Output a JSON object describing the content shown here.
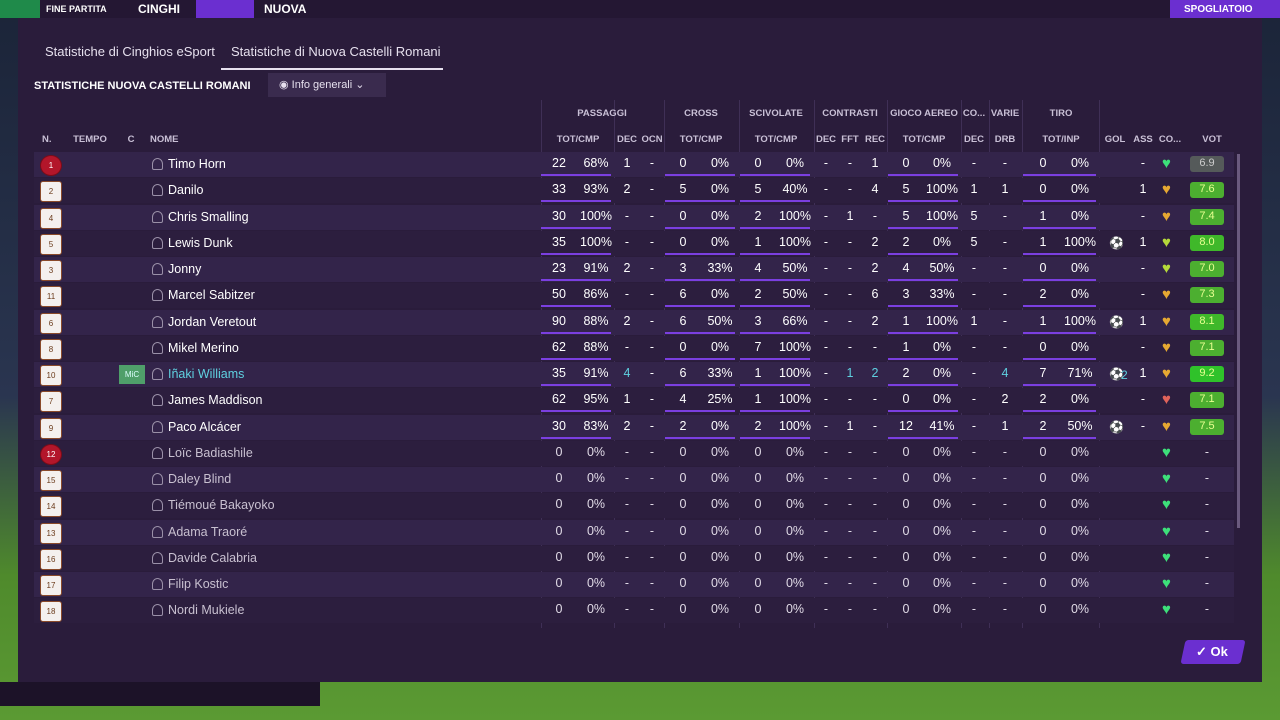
{
  "header": {
    "left": "FINE PARTITA",
    "home": "CINGHI",
    "away": "NUOVA",
    "button": "SPOGLIATOIO"
  },
  "tabs": [
    "Statistiche di Cinghios eSport",
    "Statistiche di Nuova Castelli Romani"
  ],
  "active_tab": 1,
  "section_title": "STATISTICHE NUOVA CASTELLI ROMANI",
  "dropdown": "Info generali",
  "table": {
    "groups": [
      "PASSAGGI",
      "CROSS",
      "SCIVOLATE",
      "CONTRASTI",
      "GIOCO AEREO",
      "CO...",
      "VARIE",
      "TIRO"
    ],
    "columns": [
      "N.",
      "TEMPO",
      "C",
      "NOME",
      "TOT/CMP",
      "DEC",
      "OCN",
      "TOT/CMP",
      "TOT/CMP",
      "DEC",
      "FFT",
      "REC",
      "TOT/CMP",
      "DEC",
      "DRB",
      "TOT/INP",
      "GOL",
      "ASS",
      "CO...",
      "VOT"
    ],
    "rows": [
      {
        "shirt": "1",
        "kit": "gk",
        "status": "starter",
        "name": "Timo Horn",
        "morale": "#3de07a",
        "vot_color": "#555a5a",
        "cells": [
          "22",
          "68%",
          "1",
          "-",
          "0",
          "0%",
          "0",
          "0%",
          "-",
          "-",
          "1",
          "0",
          "0%",
          "-",
          "-",
          "0",
          "0%",
          null,
          "-",
          "6.9"
        ]
      },
      {
        "shirt": "2",
        "kit": "outfield",
        "status": "starter",
        "name": "Danilo",
        "morale": "#e6a832",
        "vot_color": "#4caf30",
        "cells": [
          "33",
          "93%",
          "2",
          "-",
          "5",
          "0%",
          "5",
          "40%",
          "-",
          "-",
          "4",
          "5",
          "100%",
          "1",
          "1",
          "0",
          "0%",
          null,
          "1",
          "7.6"
        ]
      },
      {
        "shirt": "4",
        "kit": "outfield",
        "status": "starter",
        "name": "Chris Smalling",
        "morale": "#e6a832",
        "vot_color": "#4caf30",
        "cells": [
          "30",
          "100%",
          "-",
          "-",
          "0",
          "0%",
          "2",
          "100%",
          "-",
          "1",
          "-",
          "5",
          "100%",
          "5",
          "-",
          "1",
          "0%",
          null,
          "-",
          "7.4"
        ]
      },
      {
        "shirt": "5",
        "kit": "outfield",
        "status": "starter",
        "name": "Lewis Dunk",
        "morale": "#b5d93a",
        "vot_color": "#3fb82a",
        "cells": [
          "35",
          "100%",
          "-",
          "-",
          "0",
          "0%",
          "1",
          "100%",
          "-",
          "-",
          "2",
          "2",
          "0%",
          "5",
          "-",
          "1",
          "100%",
          1,
          "1",
          "8.0"
        ]
      },
      {
        "shirt": "3",
        "kit": "outfield",
        "status": "starter",
        "name": "Jonny",
        "morale": "#b5d93a",
        "vot_color": "#4caf30",
        "cells": [
          "23",
          "91%",
          "2",
          "-",
          "3",
          "33%",
          "4",
          "50%",
          "-",
          "-",
          "2",
          "4",
          "50%",
          "-",
          "-",
          "0",
          "0%",
          null,
          "-",
          "7.0"
        ]
      },
      {
        "shirt": "11",
        "kit": "outfield",
        "status": "starter",
        "name": "Marcel Sabitzer",
        "morale": "#e6a832",
        "vot_color": "#4caf30",
        "cells": [
          "50",
          "86%",
          "-",
          "-",
          "6",
          "0%",
          "2",
          "50%",
          "-",
          "-",
          "6",
          "3",
          "33%",
          "-",
          "-",
          "2",
          "0%",
          null,
          "-",
          "7.3"
        ]
      },
      {
        "shirt": "6",
        "kit": "outfield",
        "status": "starter",
        "name": "Jordan Veretout",
        "morale": "#e6a832",
        "vot_color": "#3fb82a",
        "cells": [
          "90",
          "88%",
          "2",
          "-",
          "6",
          "50%",
          "3",
          "66%",
          "-",
          "-",
          "2",
          "1",
          "100%",
          "1",
          "-",
          "1",
          "100%",
          1,
          "1",
          "8.1"
        ]
      },
      {
        "shirt": "8",
        "kit": "outfield",
        "status": "starter",
        "name": "Mikel Merino",
        "morale": "#e6a832",
        "vot_color": "#4caf30",
        "cells": [
          "62",
          "88%",
          "-",
          "-",
          "0",
          "0%",
          "7",
          "100%",
          "-",
          "-",
          "-",
          "1",
          "0%",
          "-",
          "-",
          "0",
          "0%",
          null,
          "-",
          "7.1"
        ]
      },
      {
        "shirt": "10",
        "kit": "outfield",
        "status": "starter",
        "name": "Iñaki Williams",
        "pos": "MiC",
        "highlight": true,
        "morale": "#e6a832",
        "vot_color": "#2fc22a",
        "cells": [
          "35",
          "91%",
          "4",
          "-",
          "6",
          "33%",
          "1",
          "100%",
          "-",
          "1",
          "2",
          "2",
          "0%",
          "-",
          "4",
          "7",
          "71%",
          2,
          "1",
          "9.2"
        ]
      },
      {
        "shirt": "7",
        "kit": "outfield",
        "status": "starter",
        "name": "James Maddison",
        "morale": "#e0635a",
        "vot_color": "#4caf30",
        "cells": [
          "62",
          "95%",
          "1",
          "-",
          "4",
          "25%",
          "1",
          "100%",
          "-",
          "-",
          "-",
          "0",
          "0%",
          "-",
          "2",
          "2",
          "0%",
          null,
          "-",
          "7.1"
        ]
      },
      {
        "shirt": "9",
        "kit": "outfield",
        "status": "starter",
        "name": "Paco Alcácer",
        "morale": "#e6a832",
        "vot_color": "#4caf30",
        "cells": [
          "30",
          "83%",
          "2",
          "-",
          "2",
          "0%",
          "2",
          "100%",
          "-",
          "1",
          "-",
          "12",
          "41%",
          "-",
          "1",
          "2",
          "50%",
          1,
          "-",
          "7.5"
        ]
      },
      {
        "shirt": "12",
        "kit": "gk",
        "status": "sub",
        "name": "Loïc Badiashile",
        "morale": "#3de07a",
        "vot_color": null,
        "cells": [
          "0",
          "0%",
          "-",
          "-",
          "0",
          "0%",
          "0",
          "0%",
          "-",
          "-",
          "-",
          "0",
          "0%",
          "-",
          "-",
          "0",
          "0%",
          null,
          null,
          "-"
        ]
      },
      {
        "shirt": "15",
        "kit": "outfield",
        "status": "sub",
        "name": "Daley Blind",
        "morale": "#3de07a",
        "vot_color": null,
        "cells": [
          "0",
          "0%",
          "-",
          "-",
          "0",
          "0%",
          "0",
          "0%",
          "-",
          "-",
          "-",
          "0",
          "0%",
          "-",
          "-",
          "0",
          "0%",
          null,
          null,
          "-"
        ]
      },
      {
        "shirt": "14",
        "kit": "outfield",
        "status": "sub",
        "name": "Tiémoué Bakayoko",
        "morale": "#3de07a",
        "vot_color": null,
        "cells": [
          "0",
          "0%",
          "-",
          "-",
          "0",
          "0%",
          "0",
          "0%",
          "-",
          "-",
          "-",
          "0",
          "0%",
          "-",
          "-",
          "0",
          "0%",
          null,
          null,
          "-"
        ]
      },
      {
        "shirt": "13",
        "kit": "outfield",
        "status": "sub",
        "name": "Adama Traoré",
        "morale": "#3de07a",
        "vot_color": null,
        "cells": [
          "0",
          "0%",
          "-",
          "-",
          "0",
          "0%",
          "0",
          "0%",
          "-",
          "-",
          "-",
          "0",
          "0%",
          "-",
          "-",
          "0",
          "0%",
          null,
          null,
          "-"
        ]
      },
      {
        "shirt": "16",
        "kit": "outfield",
        "status": "sub",
        "name": "Davide Calabria",
        "morale": "#3de07a",
        "vot_color": null,
        "cells": [
          "0",
          "0%",
          "-",
          "-",
          "0",
          "0%",
          "0",
          "0%",
          "-",
          "-",
          "-",
          "0",
          "0%",
          "-",
          "-",
          "0",
          "0%",
          null,
          null,
          "-"
        ]
      },
      {
        "shirt": "17",
        "kit": "outfield",
        "status": "sub",
        "name": "Filip Kostic",
        "morale": "#3de07a",
        "vot_color": null,
        "cells": [
          "0",
          "0%",
          "-",
          "-",
          "0",
          "0%",
          "0",
          "0%",
          "-",
          "-",
          "-",
          "0",
          "0%",
          "-",
          "-",
          "0",
          "0%",
          null,
          null,
          "-"
        ]
      },
      {
        "shirt": "18",
        "kit": "outfield",
        "status": "sub",
        "name": "Nordi Mukiele",
        "morale": "#3de07a",
        "vot_color": null,
        "cells": [
          "0",
          "0%",
          "-",
          "-",
          "0",
          "0%",
          "0",
          "0%",
          "-",
          "-",
          "-",
          "0",
          "0%",
          "-",
          "-",
          "0",
          "0%",
          null,
          null,
          "-"
        ]
      }
    ]
  },
  "ok": "Ok"
}
